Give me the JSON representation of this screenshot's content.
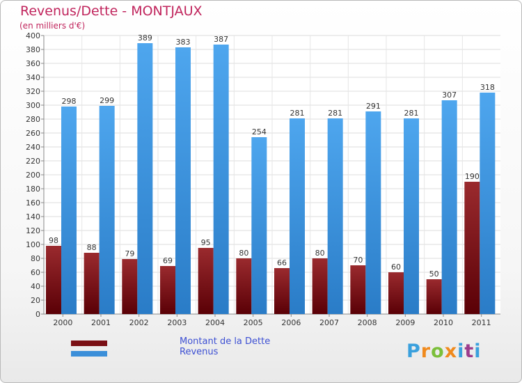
{
  "chart_data": {
    "type": "bar",
    "title": "Revenus/Dette - MONTJAUX",
    "subtitle": "(en milliers d'€)",
    "categories": [
      "2000",
      "2001",
      "2002",
      "2003",
      "2004",
      "2005",
      "2006",
      "2007",
      "2008",
      "2009",
      "2010",
      "2011"
    ],
    "series": [
      {
        "name": "Montant de la Dette",
        "color": "#7a0f14",
        "values": [
          98,
          88,
          79,
          69,
          95,
          80,
          66,
          80,
          70,
          60,
          50,
          190
        ]
      },
      {
        "name": "Revenus",
        "color": "#3b8fd9",
        "values": [
          298,
          299,
          389,
          383,
          387,
          254,
          281,
          281,
          291,
          281,
          307,
          318
        ]
      }
    ],
    "ylim": [
      0,
      400
    ],
    "ytick_step": 20,
    "grid": true,
    "legend_position": "bottom-left"
  },
  "logo": {
    "letters": [
      "P",
      "r",
      "o",
      "x",
      "i",
      "t",
      "i"
    ]
  }
}
